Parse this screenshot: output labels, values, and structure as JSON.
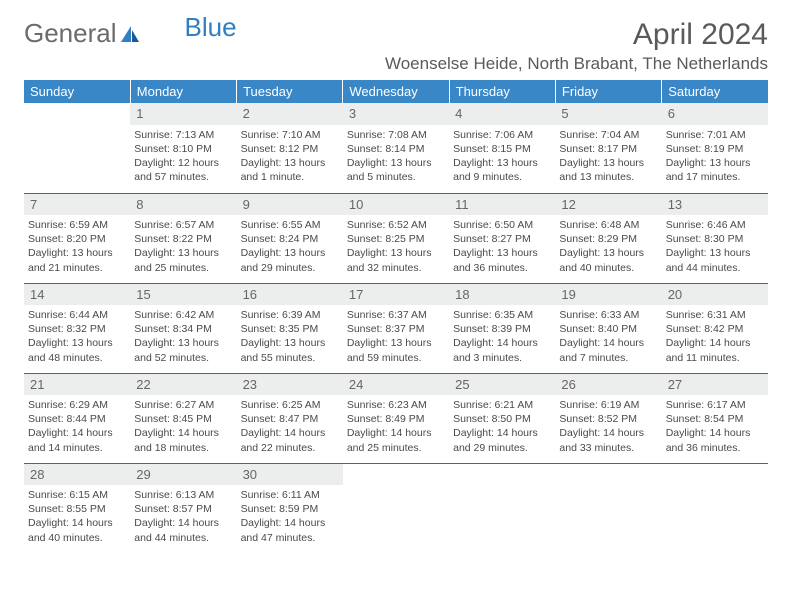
{
  "brand": {
    "part1": "General",
    "part2": "Blue"
  },
  "title": "April 2024",
  "location": "Woenselse Heide, North Brabant, The Netherlands",
  "colors": {
    "header_bg": "#3a87c8",
    "header_text": "#ffffff",
    "daynum_bg": "#eceded",
    "border": "#2f6fa8",
    "text": "#4a4a4a",
    "brand_gray": "#6b6b6b",
    "brand_blue": "#2f7fc2"
  },
  "weekdays": [
    "Sunday",
    "Monday",
    "Tuesday",
    "Wednesday",
    "Thursday",
    "Friday",
    "Saturday"
  ],
  "weeks": [
    [
      {
        "day": "",
        "sunrise": "",
        "sunset": "",
        "daylight1": "",
        "daylight2": "",
        "empty": true
      },
      {
        "day": "1",
        "sunrise": "Sunrise: 7:13 AM",
        "sunset": "Sunset: 8:10 PM",
        "daylight1": "Daylight: 12 hours",
        "daylight2": "and 57 minutes."
      },
      {
        "day": "2",
        "sunrise": "Sunrise: 7:10 AM",
        "sunset": "Sunset: 8:12 PM",
        "daylight1": "Daylight: 13 hours",
        "daylight2": "and 1 minute."
      },
      {
        "day": "3",
        "sunrise": "Sunrise: 7:08 AM",
        "sunset": "Sunset: 8:14 PM",
        "daylight1": "Daylight: 13 hours",
        "daylight2": "and 5 minutes."
      },
      {
        "day": "4",
        "sunrise": "Sunrise: 7:06 AM",
        "sunset": "Sunset: 8:15 PM",
        "daylight1": "Daylight: 13 hours",
        "daylight2": "and 9 minutes."
      },
      {
        "day": "5",
        "sunrise": "Sunrise: 7:04 AM",
        "sunset": "Sunset: 8:17 PM",
        "daylight1": "Daylight: 13 hours",
        "daylight2": "and 13 minutes."
      },
      {
        "day": "6",
        "sunrise": "Sunrise: 7:01 AM",
        "sunset": "Sunset: 8:19 PM",
        "daylight1": "Daylight: 13 hours",
        "daylight2": "and 17 minutes."
      }
    ],
    [
      {
        "day": "7",
        "sunrise": "Sunrise: 6:59 AM",
        "sunset": "Sunset: 8:20 PM",
        "daylight1": "Daylight: 13 hours",
        "daylight2": "and 21 minutes."
      },
      {
        "day": "8",
        "sunrise": "Sunrise: 6:57 AM",
        "sunset": "Sunset: 8:22 PM",
        "daylight1": "Daylight: 13 hours",
        "daylight2": "and 25 minutes."
      },
      {
        "day": "9",
        "sunrise": "Sunrise: 6:55 AM",
        "sunset": "Sunset: 8:24 PM",
        "daylight1": "Daylight: 13 hours",
        "daylight2": "and 29 minutes."
      },
      {
        "day": "10",
        "sunrise": "Sunrise: 6:52 AM",
        "sunset": "Sunset: 8:25 PM",
        "daylight1": "Daylight: 13 hours",
        "daylight2": "and 32 minutes."
      },
      {
        "day": "11",
        "sunrise": "Sunrise: 6:50 AM",
        "sunset": "Sunset: 8:27 PM",
        "daylight1": "Daylight: 13 hours",
        "daylight2": "and 36 minutes."
      },
      {
        "day": "12",
        "sunrise": "Sunrise: 6:48 AM",
        "sunset": "Sunset: 8:29 PM",
        "daylight1": "Daylight: 13 hours",
        "daylight2": "and 40 minutes."
      },
      {
        "day": "13",
        "sunrise": "Sunrise: 6:46 AM",
        "sunset": "Sunset: 8:30 PM",
        "daylight1": "Daylight: 13 hours",
        "daylight2": "and 44 minutes."
      }
    ],
    [
      {
        "day": "14",
        "sunrise": "Sunrise: 6:44 AM",
        "sunset": "Sunset: 8:32 PM",
        "daylight1": "Daylight: 13 hours",
        "daylight2": "and 48 minutes."
      },
      {
        "day": "15",
        "sunrise": "Sunrise: 6:42 AM",
        "sunset": "Sunset: 8:34 PM",
        "daylight1": "Daylight: 13 hours",
        "daylight2": "and 52 minutes."
      },
      {
        "day": "16",
        "sunrise": "Sunrise: 6:39 AM",
        "sunset": "Sunset: 8:35 PM",
        "daylight1": "Daylight: 13 hours",
        "daylight2": "and 55 minutes."
      },
      {
        "day": "17",
        "sunrise": "Sunrise: 6:37 AM",
        "sunset": "Sunset: 8:37 PM",
        "daylight1": "Daylight: 13 hours",
        "daylight2": "and 59 minutes."
      },
      {
        "day": "18",
        "sunrise": "Sunrise: 6:35 AM",
        "sunset": "Sunset: 8:39 PM",
        "daylight1": "Daylight: 14 hours",
        "daylight2": "and 3 minutes."
      },
      {
        "day": "19",
        "sunrise": "Sunrise: 6:33 AM",
        "sunset": "Sunset: 8:40 PM",
        "daylight1": "Daylight: 14 hours",
        "daylight2": "and 7 minutes."
      },
      {
        "day": "20",
        "sunrise": "Sunrise: 6:31 AM",
        "sunset": "Sunset: 8:42 PM",
        "daylight1": "Daylight: 14 hours",
        "daylight2": "and 11 minutes."
      }
    ],
    [
      {
        "day": "21",
        "sunrise": "Sunrise: 6:29 AM",
        "sunset": "Sunset: 8:44 PM",
        "daylight1": "Daylight: 14 hours",
        "daylight2": "and 14 minutes."
      },
      {
        "day": "22",
        "sunrise": "Sunrise: 6:27 AM",
        "sunset": "Sunset: 8:45 PM",
        "daylight1": "Daylight: 14 hours",
        "daylight2": "and 18 minutes."
      },
      {
        "day": "23",
        "sunrise": "Sunrise: 6:25 AM",
        "sunset": "Sunset: 8:47 PM",
        "daylight1": "Daylight: 14 hours",
        "daylight2": "and 22 minutes."
      },
      {
        "day": "24",
        "sunrise": "Sunrise: 6:23 AM",
        "sunset": "Sunset: 8:49 PM",
        "daylight1": "Daylight: 14 hours",
        "daylight2": "and 25 minutes."
      },
      {
        "day": "25",
        "sunrise": "Sunrise: 6:21 AM",
        "sunset": "Sunset: 8:50 PM",
        "daylight1": "Daylight: 14 hours",
        "daylight2": "and 29 minutes."
      },
      {
        "day": "26",
        "sunrise": "Sunrise: 6:19 AM",
        "sunset": "Sunset: 8:52 PM",
        "daylight1": "Daylight: 14 hours",
        "daylight2": "and 33 minutes."
      },
      {
        "day": "27",
        "sunrise": "Sunrise: 6:17 AM",
        "sunset": "Sunset: 8:54 PM",
        "daylight1": "Daylight: 14 hours",
        "daylight2": "and 36 minutes."
      }
    ],
    [
      {
        "day": "28",
        "sunrise": "Sunrise: 6:15 AM",
        "sunset": "Sunset: 8:55 PM",
        "daylight1": "Daylight: 14 hours",
        "daylight2": "and 40 minutes."
      },
      {
        "day": "29",
        "sunrise": "Sunrise: 6:13 AM",
        "sunset": "Sunset: 8:57 PM",
        "daylight1": "Daylight: 14 hours",
        "daylight2": "and 44 minutes."
      },
      {
        "day": "30",
        "sunrise": "Sunrise: 6:11 AM",
        "sunset": "Sunset: 8:59 PM",
        "daylight1": "Daylight: 14 hours",
        "daylight2": "and 47 minutes."
      },
      {
        "day": "",
        "sunrise": "",
        "sunset": "",
        "daylight1": "",
        "daylight2": "",
        "empty": true
      },
      {
        "day": "",
        "sunrise": "",
        "sunset": "",
        "daylight1": "",
        "daylight2": "",
        "empty": true
      },
      {
        "day": "",
        "sunrise": "",
        "sunset": "",
        "daylight1": "",
        "daylight2": "",
        "empty": true
      },
      {
        "day": "",
        "sunrise": "",
        "sunset": "",
        "daylight1": "",
        "daylight2": "",
        "empty": true
      }
    ]
  ]
}
